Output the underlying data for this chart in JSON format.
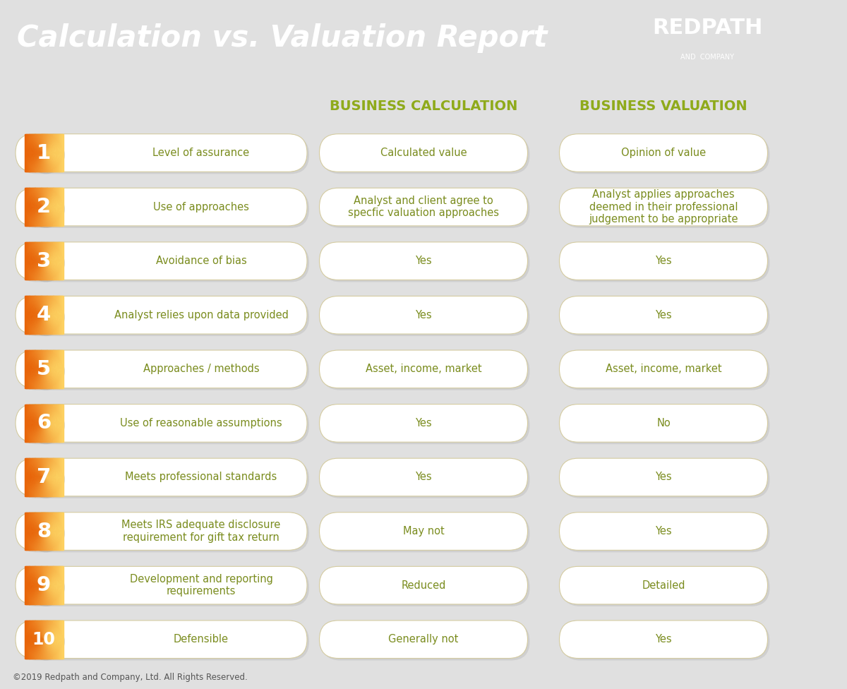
{
  "title": "Calculation vs. Valuation Report",
  "header_bg": "#6b6459",
  "body_bg": "#e0e0e0",
  "col1_header": "BUSINESS CALCULATION",
  "col2_header": "BUSINESS VALUATION",
  "header_color": "#8faa1b",
  "rows": [
    {
      "num": "1",
      "label": "Level of assurance",
      "col1": "Calculated value",
      "col2": "Opinion of value"
    },
    {
      "num": "2",
      "label": "Use of approaches",
      "col1": "Analyst and client agree to\nspecfic valuation approaches",
      "col2": "Analyst applies approaches\ndeemed in their professional\njudgement to be appropriate"
    },
    {
      "num": "3",
      "label": "Avoidance of bias",
      "col1": "Yes",
      "col2": "Yes"
    },
    {
      "num": "4",
      "label": "Analyst relies upon data provided",
      "col1": "Yes",
      "col2": "Yes"
    },
    {
      "num": "5",
      "label": "Approaches / methods",
      "col1": "Asset, income, market",
      "col2": "Asset, income, market"
    },
    {
      "num": "6",
      "label": "Use of reasonable assumptions",
      "col1": "Yes",
      "col2": "No"
    },
    {
      "num": "7",
      "label": "Meets professional standards",
      "col1": "Yes",
      "col2": "Yes"
    },
    {
      "num": "8",
      "label": "Meets IRS adequate disclosure\nrequirement for gift tax return",
      "col1": "May not",
      "col2": "Yes"
    },
    {
      "num": "9",
      "label": "Development and reporting\nrequirements",
      "col1": "Reduced",
      "col2": "Detailed"
    },
    {
      "num": "10",
      "label": "Defensible",
      "col1": "Generally not",
      "col2": "Yes"
    }
  ],
  "footer": "©2019 Redpath and Company, Ltd. All Rights Reserved.",
  "text_color": "#7a8c1e",
  "white": "#ffffff",
  "orange_dark": "#e8650a",
  "orange_light": "#fdd060",
  "pill_border": "#d4cba0",
  "shadow_color": "#bbbbbb"
}
